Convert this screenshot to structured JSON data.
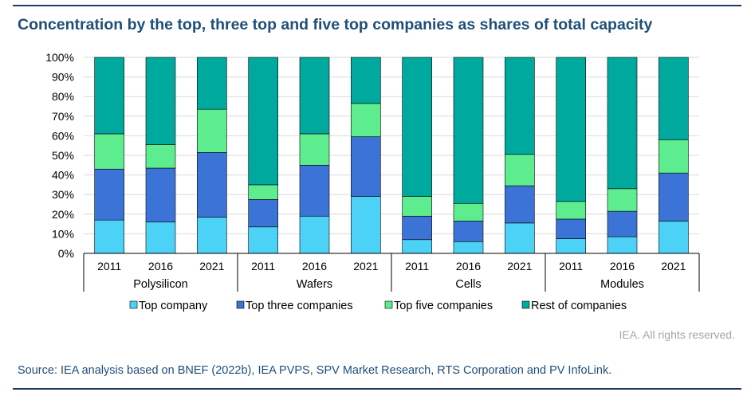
{
  "header": {
    "title": "Concentration by the top, three top and five top companies as shares of total capacity"
  },
  "footer": {
    "rights": "IEA. All rights reserved.",
    "source": "Source: IEA analysis based on BNEF (2022b), IEA PVPS, SPV Market Research, RTS Corporation and PV InfoLink."
  },
  "chart_data": {
    "type": "bar",
    "stacked": true,
    "title": "Concentration by the top, three top and five top companies as shares of total capacity",
    "xlabel": "",
    "ylabel": "",
    "ylim": [
      0,
      100
    ],
    "yticks": [
      "0%",
      "10%",
      "20%",
      "30%",
      "40%",
      "50%",
      "60%",
      "70%",
      "80%",
      "90%",
      "100%"
    ],
    "grid": true,
    "legend_position": "bottom",
    "groups": [
      "Polysilicon",
      "Wafers",
      "Cells",
      "Modules"
    ],
    "categories": [
      "2011",
      "2016",
      "2021",
      "2011",
      "2016",
      "2021",
      "2011",
      "2016",
      "2021",
      "2011",
      "2016",
      "2021"
    ],
    "series": [
      {
        "name": "Top company",
        "color": "#4dd2f7",
        "values": [
          17,
          16,
          18.5,
          13.5,
          19,
          29,
          7,
          6,
          15.5,
          7.5,
          8.5,
          16.5
        ]
      },
      {
        "name": "Top three companies",
        "color": "#3b74d6",
        "values": [
          26,
          27.5,
          33,
          14,
          26,
          30.5,
          12,
          10.5,
          19,
          10,
          13,
          24.5
        ]
      },
      {
        "name": "Top five companies",
        "color": "#5ded8f",
        "values": [
          18,
          12,
          22,
          7.5,
          16,
          17,
          10,
          9,
          16,
          9,
          11.5,
          17
        ]
      },
      {
        "name": "Rest of companies",
        "color": "#00a99d",
        "values": [
          39,
          44.5,
          26.5,
          65,
          39,
          23.5,
          71,
          74.5,
          49.5,
          73.5,
          67,
          42
        ]
      }
    ]
  }
}
